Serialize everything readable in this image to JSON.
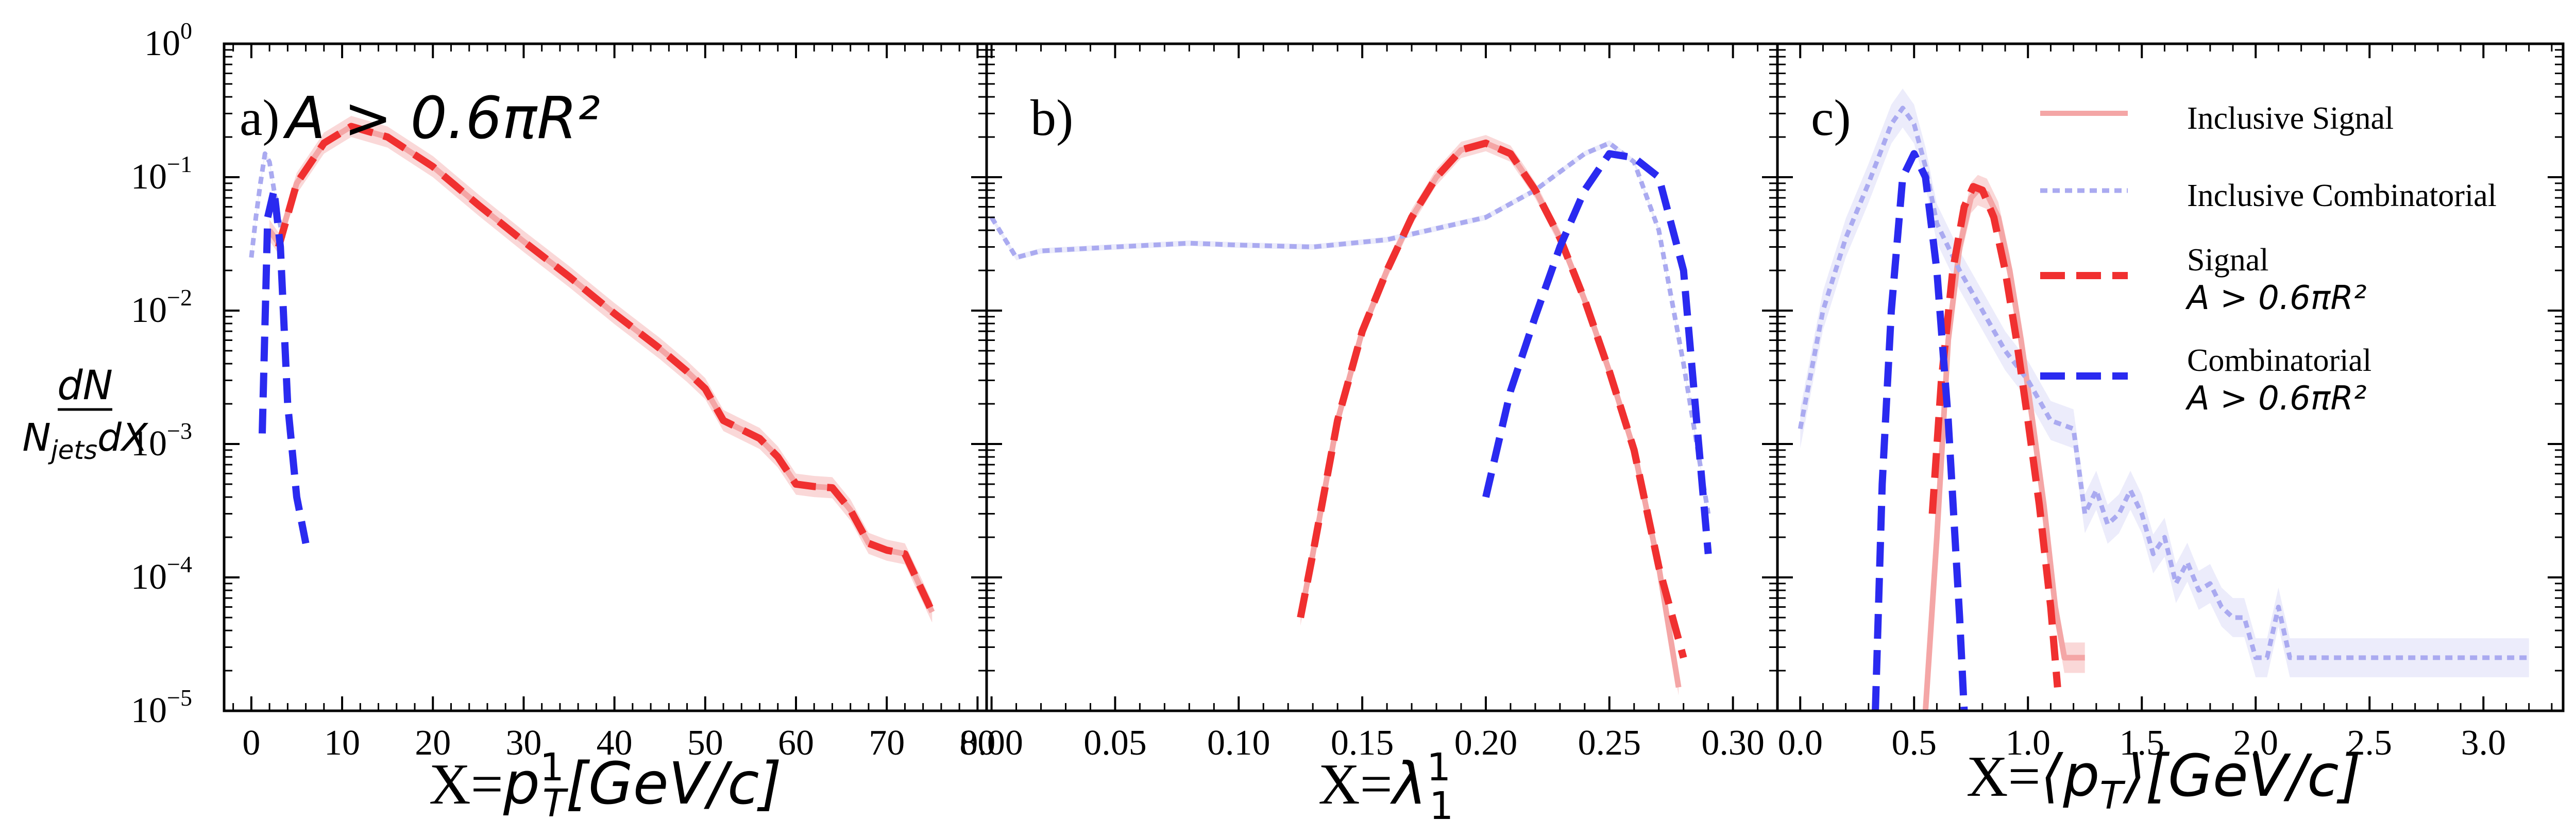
{
  "figure": {
    "y_label_num": "dN",
    "y_label_den": "N",
    "y_label_den_sub": "jets",
    "y_label_den_tail": "dX"
  },
  "legend": [
    {
      "label": "Inclusive Signal",
      "color": "#f4a6a6",
      "style": "solid"
    },
    {
      "label": "Inclusive Combinatorial",
      "color": "#aaaaf0",
      "style": "dotted"
    },
    {
      "label": "Signal",
      "sublabel": "A > 0.6πR²",
      "color": "#f03030",
      "style": "dashed"
    },
    {
      "label": "Combinatorial",
      "sublabel": "A > 0.6πR²",
      "color": "#2a2af0",
      "style": "dashed"
    }
  ],
  "panels": [
    {
      "tag": "a)",
      "cut": "A > 0.6πR²",
      "xlabel_prefix": "X=",
      "xlabel_var": "p",
      "xlabel_sub": "T",
      "xlabel_sup": "1",
      "xlabel_unit": "[GeV/c]"
    },
    {
      "tag": "b)",
      "xlabel_prefix": "X=",
      "xlabel_var": "λ",
      "xlabel_sub": "1",
      "xlabel_sup": "1",
      "xlabel_unit": ""
    },
    {
      "tag": "c)",
      "xlabel_prefix": "X=",
      "xlabel_var": "⟨p",
      "xlabel_sub": "T",
      "xlabel_sup": "",
      "xlabel_unit": "⟩[GeV/c]"
    }
  ],
  "colors": {
    "incl_signal": "#f4a6a6",
    "incl_signal_band": "#f8c8c8",
    "incl_comb": "#aaaaf0",
    "incl_comb_band": "#e4e4fa",
    "signal": "#f03030",
    "comb": "#2a2af0",
    "axis": "#000000"
  },
  "chart_data": [
    {
      "type": "line",
      "panel": "a",
      "xlim": [
        -3,
        81
      ],
      "ylim": [
        1e-05,
        1
      ],
      "yscale": "log",
      "xticks": [
        0,
        10,
        20,
        30,
        40,
        50,
        60,
        70,
        80
      ],
      "xticklabels": [
        "0",
        "10",
        "20",
        "30",
        "40",
        "50",
        "60",
        "70",
        "80"
      ],
      "yticks": [
        1e-05,
        0.0001,
        0.001,
        0.01,
        0.1,
        1
      ],
      "yticklabels": [
        [
          "10",
          "−5"
        ],
        [
          "10",
          "−4"
        ],
        [
          "10",
          "−3"
        ],
        [
          "10",
          "−2"
        ],
        [
          "10",
          "−1"
        ],
        [
          "10",
          "0"
        ]
      ],
      "series": [
        {
          "name": "Inclusive Signal",
          "x": [
            2,
            3,
            5,
            8,
            11,
            15,
            20,
            25,
            30,
            35,
            40,
            45,
            48,
            50,
            52,
            56,
            58,
            60,
            62,
            64,
            66,
            68,
            70,
            72,
            75
          ],
          "y": [
            0.04,
            0.032,
            0.09,
            0.18,
            0.24,
            0.2,
            0.12,
            0.062,
            0.033,
            0.018,
            0.0095,
            0.0052,
            0.0035,
            0.0026,
            0.0015,
            0.0011,
            0.0008,
            0.0005,
            0.00048,
            0.00047,
            0.00032,
            0.00018,
            0.00016,
            0.00015,
            5.5e-05
          ],
          "band": 0.2
        },
        {
          "name": "Inclusive Combinatorial",
          "x": [
            0,
            0.5,
            1,
            1.5,
            2,
            2.5,
            3,
            3.5
          ],
          "y": [
            0.025,
            0.05,
            0.09,
            0.15,
            0.13,
            0.08,
            0.05,
            0.035
          ],
          "band": 0.05
        },
        {
          "name": "Signal A > 0.6πR²",
          "x": [
            3,
            5,
            8,
            11,
            15,
            20,
            25,
            30,
            35,
            40,
            45,
            48,
            50,
            52,
            56,
            58,
            60,
            62,
            64,
            66,
            68,
            70,
            72,
            75
          ],
          "y": [
            0.03,
            0.09,
            0.18,
            0.24,
            0.2,
            0.12,
            0.062,
            0.033,
            0.018,
            0.0095,
            0.0052,
            0.0035,
            0.0026,
            0.0015,
            0.0011,
            0.0008,
            0.0005,
            0.00048,
            0.00047,
            0.00032,
            0.00018,
            0.00016,
            0.00015,
            5.5e-05
          ]
        },
        {
          "name": "Combinatorial A > 0.6πR²",
          "x": [
            1.2,
            1.8,
            2.5,
            3.2,
            4,
            5,
            6
          ],
          "y": [
            0.0012,
            0.05,
            0.08,
            0.03,
            0.002,
            0.0004,
            0.00018
          ]
        }
      ]
    },
    {
      "type": "line",
      "panel": "b",
      "xlim": [
        -0.002,
        0.318
      ],
      "ylim": [
        1e-05,
        1
      ],
      "yscale": "log",
      "xticks": [
        0,
        0.05,
        0.1,
        0.15,
        0.2,
        0.25,
        0.3
      ],
      "xticklabels": [
        "0.00",
        "0.05",
        "0.10",
        "0.15",
        "0.20",
        "0.25",
        "0.30"
      ],
      "series": [
        {
          "name": "Inclusive Signal",
          "x": [
            0.125,
            0.13,
            0.14,
            0.15,
            0.16,
            0.17,
            0.18,
            0.19,
            0.2,
            0.21,
            0.22,
            0.23,
            0.24,
            0.25,
            0.26,
            0.27,
            0.278
          ],
          "y": [
            5e-05,
            0.00015,
            0.0015,
            0.007,
            0.02,
            0.05,
            0.1,
            0.16,
            0.18,
            0.15,
            0.08,
            0.035,
            0.012,
            0.0035,
            0.0009,
            0.00012,
            1.5e-05
          ],
          "band": 0.15
        },
        {
          "name": "Inclusive Combinatorial",
          "x": [
            0,
            0.01,
            0.02,
            0.05,
            0.08,
            0.1,
            0.13,
            0.16,
            0.2,
            0.22,
            0.24,
            0.25,
            0.26,
            0.27,
            0.28,
            0.29
          ],
          "y": [
            0.05,
            0.025,
            0.028,
            0.03,
            0.032,
            0.031,
            0.03,
            0.034,
            0.05,
            0.08,
            0.15,
            0.18,
            0.13,
            0.04,
            0.004,
            0.0003
          ],
          "band": 0.05
        },
        {
          "name": "Signal A > 0.6πR²",
          "x": [
            0.125,
            0.13,
            0.14,
            0.15,
            0.16,
            0.17,
            0.18,
            0.19,
            0.2,
            0.21,
            0.22,
            0.23,
            0.24,
            0.25,
            0.26,
            0.27,
            0.28
          ],
          "y": [
            5e-05,
            0.00015,
            0.0015,
            0.007,
            0.02,
            0.05,
            0.1,
            0.16,
            0.18,
            0.15,
            0.08,
            0.035,
            0.012,
            0.0035,
            0.0009,
            0.00012,
            2.5e-05
          ]
        },
        {
          "name": "Combinatorial A > 0.6πR²",
          "x": [
            0.2,
            0.21,
            0.22,
            0.23,
            0.24,
            0.25,
            0.26,
            0.27,
            0.28,
            0.29
          ],
          "y": [
            0.0004,
            0.0025,
            0.009,
            0.03,
            0.08,
            0.15,
            0.14,
            0.1,
            0.02,
            0.00015
          ]
        }
      ]
    },
    {
      "type": "line",
      "panel": "c",
      "xlim": [
        -0.1,
        3.35
      ],
      "ylim": [
        1e-05,
        1
      ],
      "yscale": "log",
      "xticks": [
        0,
        0.5,
        1,
        1.5,
        2,
        2.5,
        3
      ],
      "xticklabels": [
        "0.0",
        "0.5",
        "1.0",
        "1.5",
        "2.0",
        "2.5",
        "3.0"
      ],
      "series": [
        {
          "name": "Inclusive Signal",
          "x": [
            0.55,
            0.6,
            0.65,
            0.7,
            0.75,
            0.78,
            0.82,
            0.87,
            0.92,
            0.97,
            1.02,
            1.07,
            1.12,
            1.16,
            1.2,
            1.25
          ],
          "y": [
            1e-05,
            0.0002,
            0.006,
            0.03,
            0.07,
            0.08,
            0.075,
            0.05,
            0.02,
            0.006,
            0.0015,
            0.00035,
            6e-05,
            2.5e-05,
            2.5e-05,
            2.5e-05
          ],
          "band": 0.3
        },
        {
          "name": "Inclusive Combinatorial",
          "x": [
            0,
            0.1,
            0.2,
            0.3,
            0.4,
            0.45,
            0.5,
            0.55,
            0.6,
            0.7,
            0.8,
            0.9,
            1.0,
            1.1,
            1.2,
            1.25,
            1.3,
            1.35,
            1.4,
            1.45,
            1.5,
            1.55,
            1.6,
            1.65,
            1.7,
            1.75,
            1.8,
            1.85,
            1.9,
            1.95,
            2.0,
            2.05,
            2.1,
            2.15,
            2.2,
            2.3,
            2.5,
            2.8,
            3.0,
            3.2
          ],
          "y": [
            0.0013,
            0.01,
            0.035,
            0.09,
            0.25,
            0.33,
            0.25,
            0.12,
            0.045,
            0.02,
            0.01,
            0.005,
            0.003,
            0.0015,
            0.0013,
            0.0003,
            0.00045,
            0.00025,
            0.0003,
            0.00045,
            0.0003,
            0.00015,
            0.0002,
            9e-05,
            0.00013,
            8e-05,
            9e-05,
            6e-05,
            5e-05,
            5e-05,
            2.5e-05,
            2.5e-05,
            6e-05,
            2.5e-05,
            2.5e-05,
            2.5e-05,
            2.5e-05,
            2.5e-05,
            2.5e-05,
            2.5e-05
          ],
          "band": 0.4
        },
        {
          "name": "Signal A > 0.6πR²",
          "x": [
            0.58,
            0.62,
            0.67,
            0.72,
            0.76,
            0.8,
            0.85,
            0.9,
            0.95,
            1.0,
            1.05,
            1.1,
            1.13
          ],
          "y": [
            0.0003,
            0.003,
            0.02,
            0.06,
            0.085,
            0.08,
            0.05,
            0.02,
            0.006,
            0.0015,
            0.00035,
            6e-05,
            1.5e-05
          ]
        },
        {
          "name": "Combinatorial A > 0.6πR²",
          "x": [
            0.33,
            0.36,
            0.4,
            0.45,
            0.5,
            0.55,
            0.6,
            0.65,
            0.7,
            0.72
          ],
          "y": [
            1e-05,
            0.0005,
            0.01,
            0.1,
            0.15,
            0.1,
            0.02,
            0.0015,
            5e-05,
            1e-05
          ]
        }
      ]
    }
  ]
}
